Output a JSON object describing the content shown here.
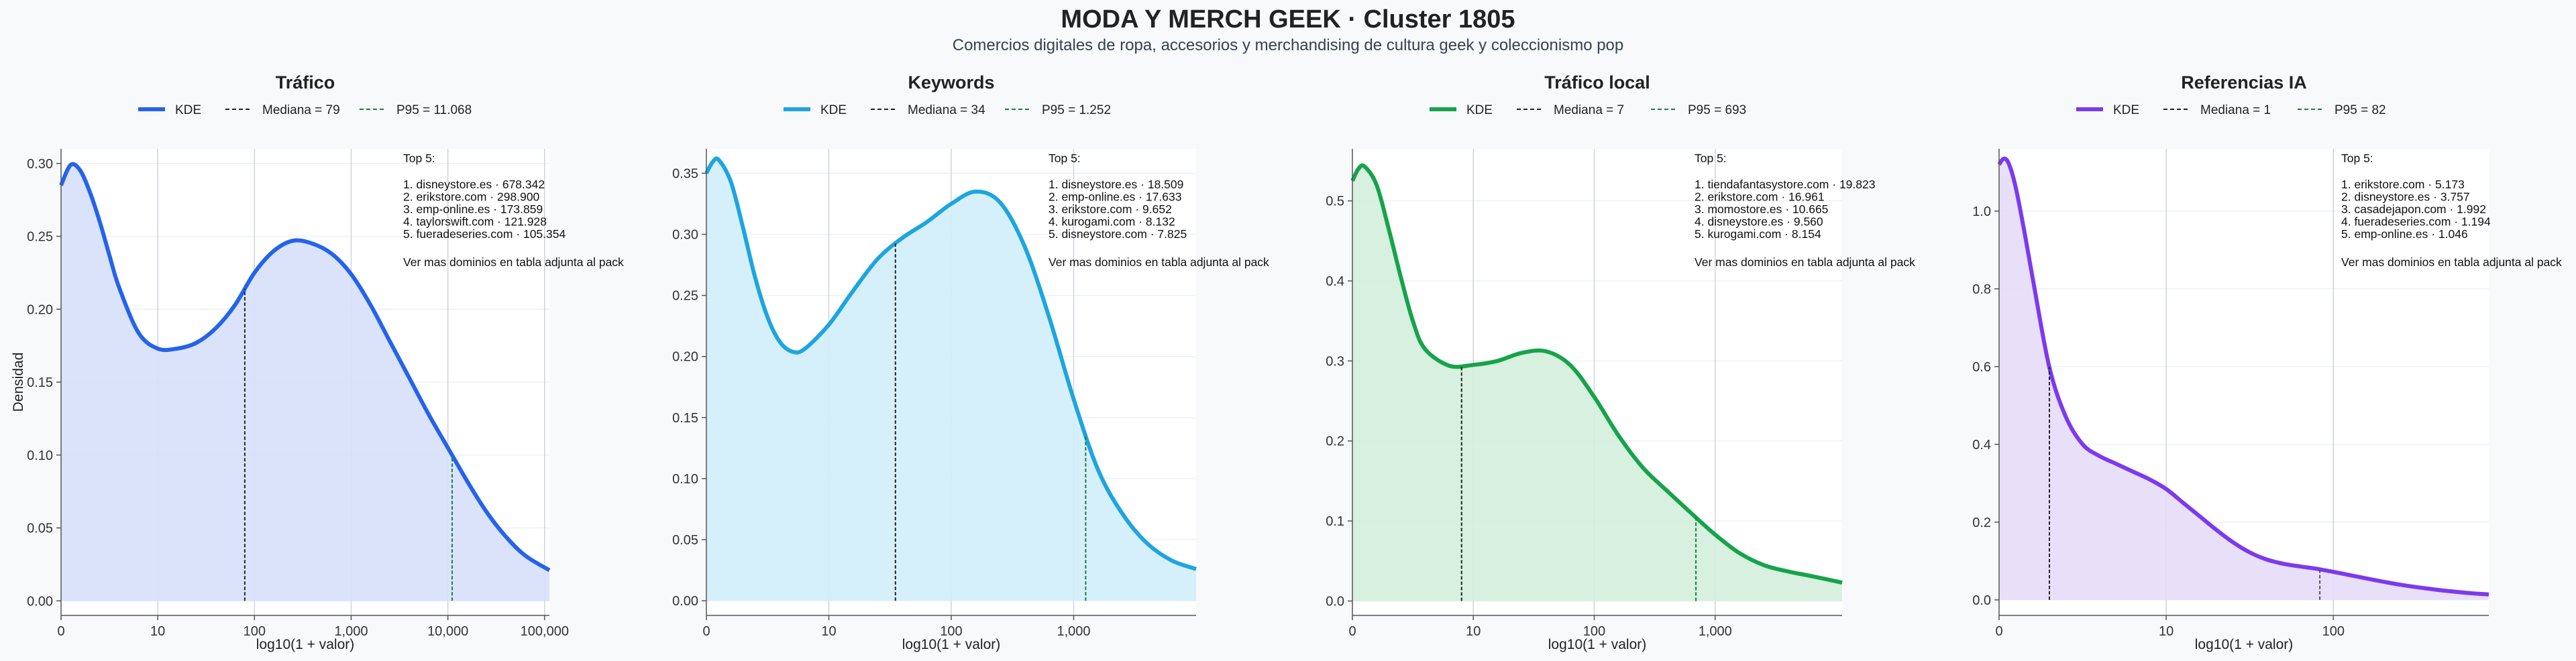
{
  "title": "MODA Y MERCH GEEK · Cluster 1805",
  "subtitle": "Comercios digitales de ropa, accesorios y merchandising de cultura geek y coleccionismo pop",
  "chart_data": [
    {
      "type": "area",
      "title": "Tráfico",
      "color": "#2563eb",
      "fill": "#d6e0f8",
      "xlabel": "log10(1 + valor)",
      "ylabel": "Densidad",
      "x_scale": "log10(1+x)",
      "xlim": [
        0,
        5.05
      ],
      "ylim": [
        -0.01,
        0.31
      ],
      "xticks": [
        {
          "v": 0,
          "label": "0"
        },
        {
          "v": 1,
          "label": "10"
        },
        {
          "v": 2,
          "label": "100"
        },
        {
          "v": 3,
          "label": "1,000"
        },
        {
          "v": 4,
          "label": "10,000"
        },
        {
          "v": 5,
          "label": "100,000"
        }
      ],
      "yticks": [
        {
          "v": 0,
          "label": "0.00"
        },
        {
          "v": 0.05,
          "label": "0.05"
        },
        {
          "v": 0.1,
          "label": "0.10"
        },
        {
          "v": 0.15,
          "label": "0.15"
        },
        {
          "v": 0.2,
          "label": "0.20"
        },
        {
          "v": 0.25,
          "label": "0.25"
        },
        {
          "v": 0.3,
          "label": "0.30"
        }
      ],
      "legend": {
        "kde": "KDE",
        "median": "Mediana = 79",
        "p95": "P95 = 11.068"
      },
      "median": 1.9,
      "p95": 4.044,
      "kde": {
        "x": [
          0,
          0.1,
          0.2,
          0.3,
          0.4,
          0.5,
          0.6,
          0.8,
          1.0,
          1.2,
          1.4,
          1.6,
          1.8,
          2.0,
          2.2,
          2.4,
          2.6,
          2.8,
          3.0,
          3.2,
          3.4,
          3.6,
          3.8,
          4.0,
          4.2,
          4.4,
          4.6,
          4.8,
          5.05
        ],
        "y": [
          0.285,
          0.299,
          0.295,
          0.28,
          0.26,
          0.237,
          0.215,
          0.184,
          0.173,
          0.173,
          0.177,
          0.187,
          0.203,
          0.225,
          0.24,
          0.247,
          0.245,
          0.238,
          0.224,
          0.203,
          0.178,
          0.153,
          0.128,
          0.105,
          0.082,
          0.061,
          0.044,
          0.031,
          0.021
        ]
      },
      "top5": {
        "header": "Top 5:",
        "items": [
          "1. disneystore.es · 678.342",
          "2. erikstore.com · 298.900",
          "3. emp-online.es · 173.859",
          "4. taylorswift.com · 121.928",
          "5. fueradeseries.com · 105.354"
        ],
        "footer": "Ver mas dominios en tabla adjunta al pack"
      }
    },
    {
      "type": "area",
      "title": "Keywords",
      "color": "#1ea5df",
      "fill": "#d0eefb",
      "xlabel": "log10(1 + valor)",
      "ylabel": "",
      "x_scale": "log10(1+x)",
      "xlim": [
        0,
        4.0
      ],
      "ylim": [
        -0.012,
        0.37
      ],
      "xticks": [
        {
          "v": 0,
          "label": "0"
        },
        {
          "v": 1,
          "label": "10"
        },
        {
          "v": 2,
          "label": "100"
        },
        {
          "v": 3,
          "label": "1,000"
        }
      ],
      "yticks": [
        {
          "v": 0,
          "label": "0.00"
        },
        {
          "v": 0.05,
          "label": "0.05"
        },
        {
          "v": 0.1,
          "label": "0.10"
        },
        {
          "v": 0.15,
          "label": "0.15"
        },
        {
          "v": 0.2,
          "label": "0.20"
        },
        {
          "v": 0.25,
          "label": "0.25"
        },
        {
          "v": 0.3,
          "label": "0.30"
        },
        {
          "v": 0.35,
          "label": "0.35"
        }
      ],
      "legend": {
        "kde": "KDE",
        "median": "Mediana = 34",
        "p95": "P95 = 1.252"
      },
      "median": 1.544,
      "p95": 3.098,
      "kde": {
        "x": [
          0,
          0.05,
          0.1,
          0.2,
          0.3,
          0.4,
          0.5,
          0.6,
          0.7,
          0.8,
          1.0,
          1.2,
          1.4,
          1.6,
          1.8,
          2.0,
          2.2,
          2.4,
          2.6,
          2.8,
          3.0,
          3.2,
          3.4,
          3.6,
          3.8,
          4.0
        ],
        "y": [
          0.35,
          0.359,
          0.361,
          0.343,
          0.305,
          0.264,
          0.232,
          0.212,
          0.204,
          0.206,
          0.226,
          0.254,
          0.28,
          0.297,
          0.31,
          0.325,
          0.335,
          0.326,
          0.29,
          0.232,
          0.165,
          0.107,
          0.071,
          0.047,
          0.033,
          0.026
        ]
      },
      "top5": {
        "header": "Top 5:",
        "items": [
          "1. disneystore.es · 18.509",
          "2. emp-online.es · 17.633",
          "3. erikstore.com · 9.652",
          "4. kurogami.com · 8.132",
          "5. disneystore.com · 7.825"
        ],
        "footer": "Ver mas dominios en tabla adjunta al pack"
      }
    },
    {
      "type": "area",
      "title": "Tráfico local",
      "color": "#16a34a",
      "fill": "#d3eedb",
      "xlabel": "log10(1 + valor)",
      "ylabel": "",
      "x_scale": "log10(1+x)",
      "xlim": [
        0,
        4.05
      ],
      "ylim": [
        -0.018,
        0.565
      ],
      "xticks": [
        {
          "v": 0,
          "label": "0"
        },
        {
          "v": 1,
          "label": "10"
        },
        {
          "v": 2,
          "label": "100"
        },
        {
          "v": 3,
          "label": "1,000"
        }
      ],
      "yticks": [
        {
          "v": 0,
          "label": "0.0"
        },
        {
          "v": 0.1,
          "label": "0.1"
        },
        {
          "v": 0.2,
          "label": "0.2"
        },
        {
          "v": 0.3,
          "label": "0.3"
        },
        {
          "v": 0.4,
          "label": "0.4"
        },
        {
          "v": 0.5,
          "label": "0.5"
        }
      ],
      "legend": {
        "kde": "KDE",
        "median": "Mediana = 7",
        "p95": "P95 = 693"
      },
      "median": 0.903,
      "p95": 2.841,
      "kde": {
        "x": [
          0,
          0.05,
          0.1,
          0.2,
          0.3,
          0.4,
          0.5,
          0.6,
          0.8,
          1.0,
          1.2,
          1.4,
          1.6,
          1.8,
          2.0,
          2.2,
          2.4,
          2.6,
          2.8,
          3.0,
          3.2,
          3.4,
          3.6,
          3.8,
          4.05
        ],
        "y": [
          0.525,
          0.54,
          0.543,
          0.52,
          0.465,
          0.405,
          0.35,
          0.315,
          0.294,
          0.295,
          0.3,
          0.31,
          0.312,
          0.295,
          0.255,
          0.207,
          0.167,
          0.138,
          0.11,
          0.083,
          0.06,
          0.045,
          0.037,
          0.031,
          0.023
        ]
      },
      "top5": {
        "header": "Top 5:",
        "items": [
          "1. tiendafantasystore.com · 19.823",
          "2. erikstore.com · 16.961",
          "3. momostore.es · 10.665",
          "4. disneystore.es · 9.560",
          "5. kurogami.com · 8.154"
        ],
        "footer": "Ver mas dominios en tabla adjunta al pack"
      }
    },
    {
      "type": "area",
      "title": "Referencias IA",
      "color": "#7c3aed",
      "fill": "#e6dcf7",
      "xlabel": "log10(1 + valor)",
      "ylabel": "",
      "x_scale": "log10(1+x)",
      "xlim": [
        0,
        2.93
      ],
      "ylim": [
        -0.04,
        1.16
      ],
      "xticks": [
        {
          "v": 0,
          "label": "0"
        },
        {
          "v": 1,
          "label": "10"
        },
        {
          "v": 2,
          "label": "100"
        },
        {
          "v": 3,
          "label": "1,000"
        }
      ],
      "yticks": [
        {
          "v": 0,
          "label": "0.0"
        },
        {
          "v": 0.2,
          "label": "0.2"
        },
        {
          "v": 0.4,
          "label": "0.4"
        },
        {
          "v": 0.6,
          "label": "0.6"
        },
        {
          "v": 0.8,
          "label": "0.8"
        },
        {
          "v": 1.0,
          "label": "1.0"
        }
      ],
      "legend": {
        "kde": "KDE",
        "median": "Mediana = 1",
        "p95": "P95 = 82"
      },
      "median": 0.301,
      "p95": 1.919,
      "kde": {
        "x": [
          0,
          0.03,
          0.06,
          0.1,
          0.15,
          0.2,
          0.3,
          0.4,
          0.5,
          0.6,
          0.7,
          0.8,
          0.9,
          1.0,
          1.1,
          1.2,
          1.3,
          1.4,
          1.5,
          1.6,
          1.7,
          1.8,
          1.9,
          2.0,
          2.2,
          2.4,
          2.6,
          2.8,
          2.93
        ],
        "y": [
          1.12,
          1.135,
          1.12,
          1.06,
          0.95,
          0.83,
          0.6,
          0.47,
          0.4,
          0.37,
          0.35,
          0.33,
          0.31,
          0.285,
          0.25,
          0.215,
          0.18,
          0.148,
          0.122,
          0.104,
          0.093,
          0.086,
          0.08,
          0.072,
          0.055,
          0.039,
          0.027,
          0.018,
          0.014
        ]
      },
      "top5": {
        "header": "Top 5:",
        "items": [
          "1. erikstore.com · 5.173",
          "2. disneystore.es · 3.757",
          "3. casadejapon.com · 1.992",
          "4. fueradeseries.com · 1.194",
          "5. emp-online.es · 1.046"
        ],
        "footer": "Ver mas dominios en tabla adjunta al pack"
      }
    }
  ]
}
